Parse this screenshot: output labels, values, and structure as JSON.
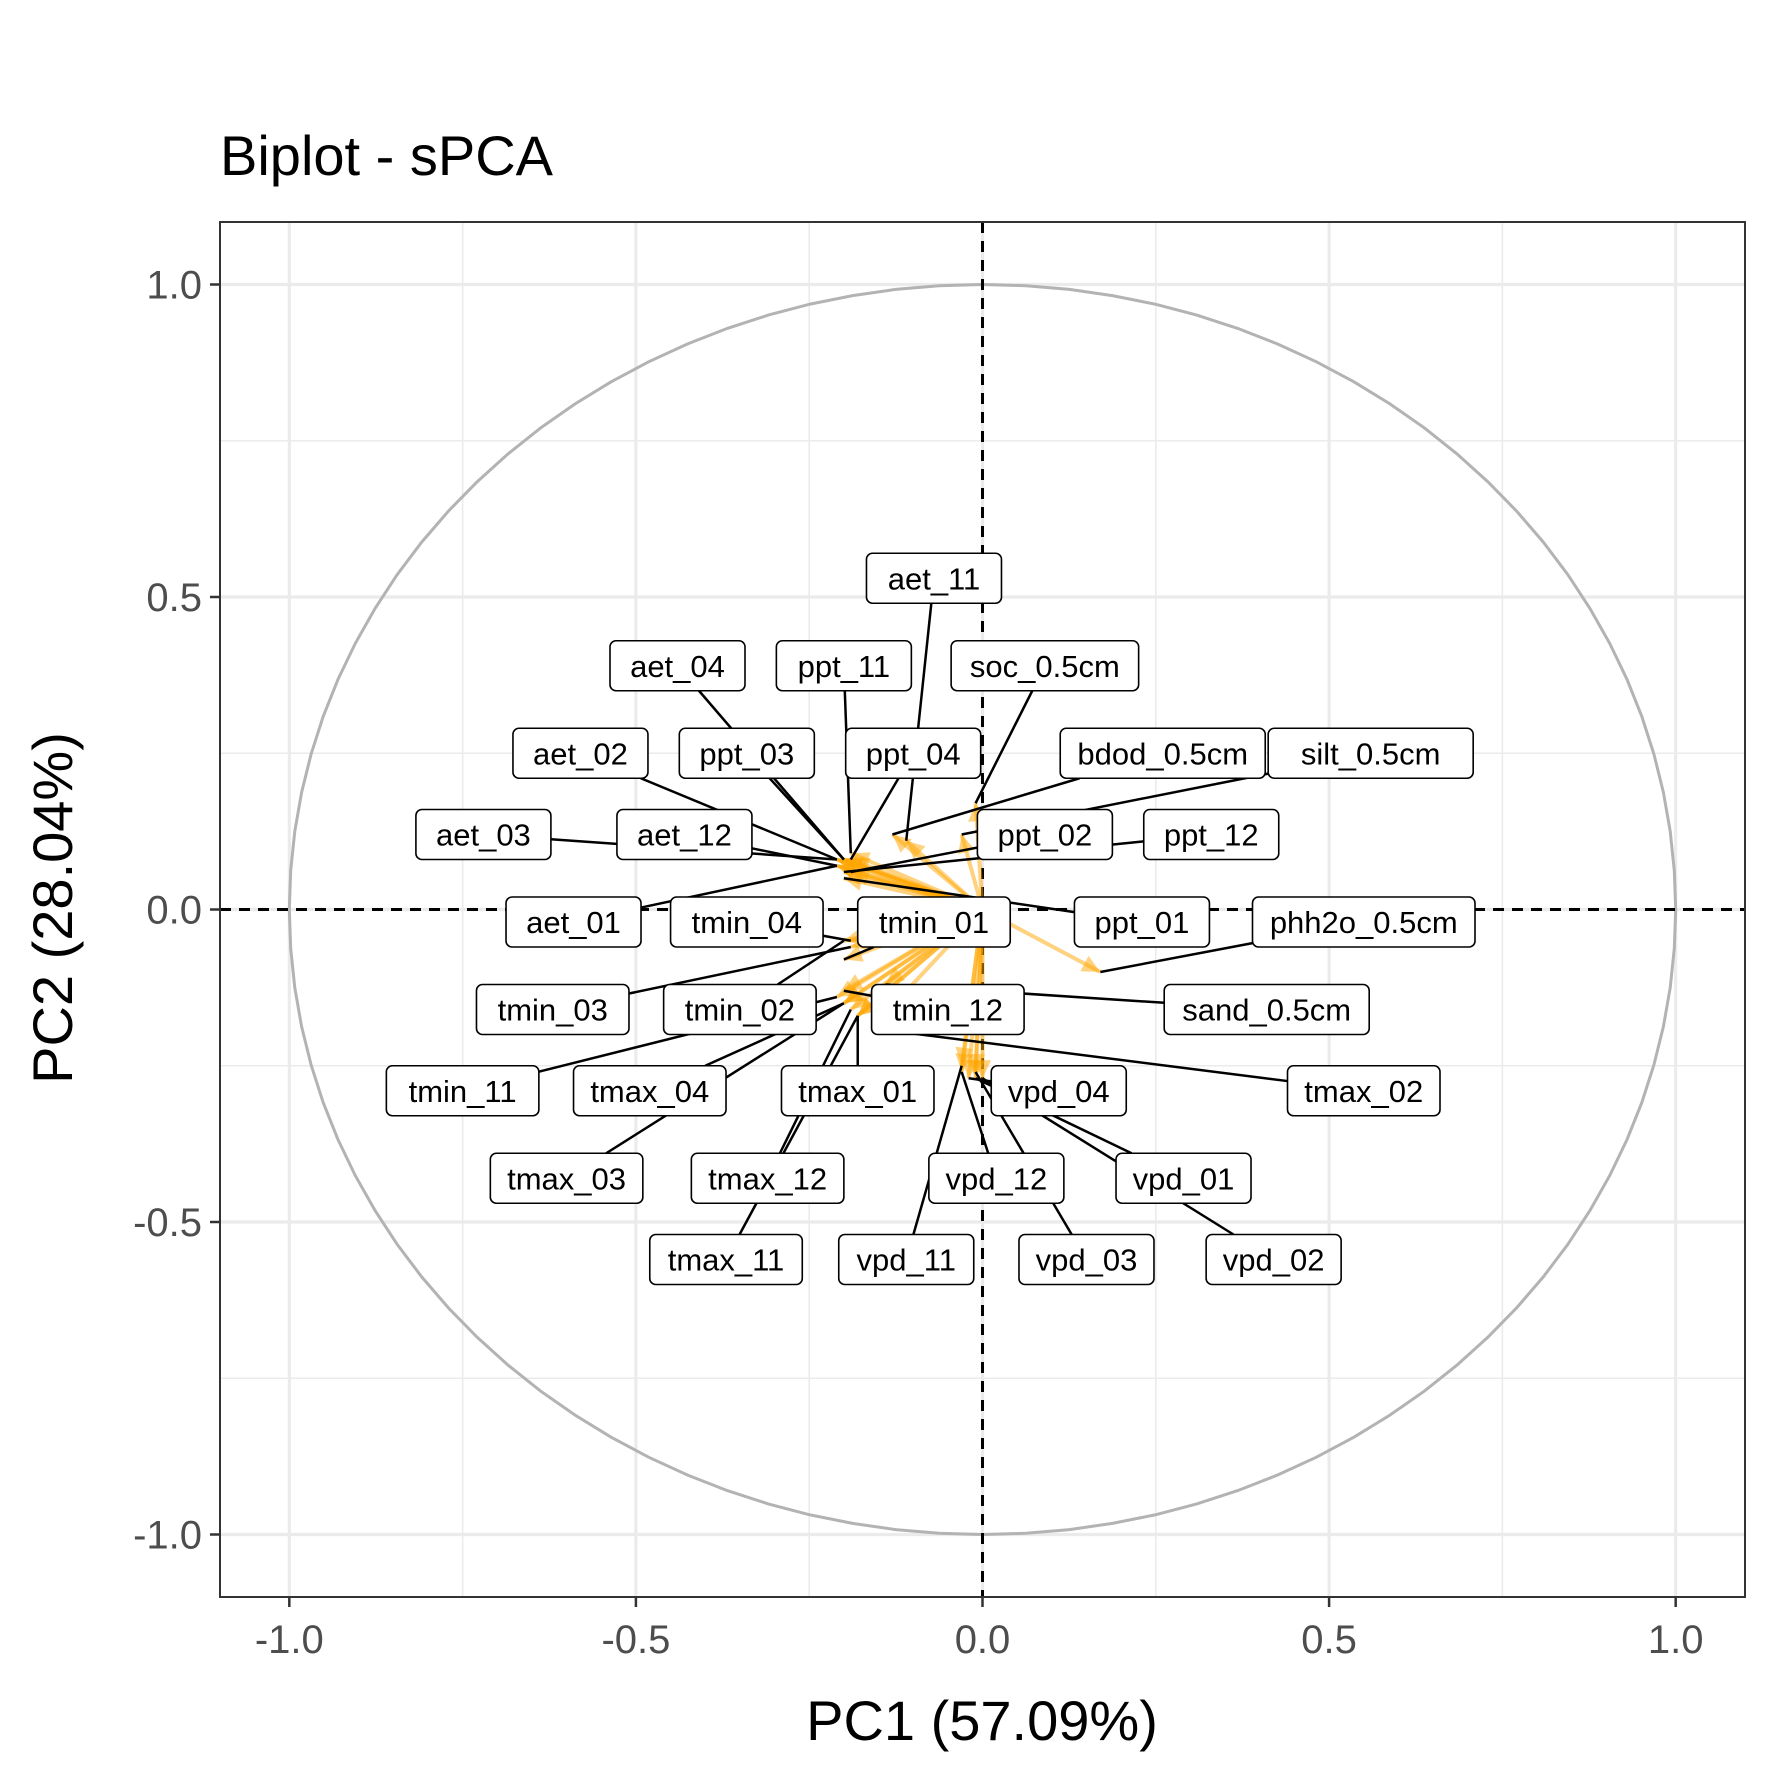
{
  "chart_data": {
    "type": "scatter",
    "title": "Biplot - sPCA",
    "xlabel": "PC1 (57.09%)",
    "ylabel": "PC2 (28.04%)",
    "xlim": [
      -1.1,
      1.1
    ],
    "ylim": [
      -1.1,
      1.1
    ],
    "xticks": [
      -1.0,
      -0.5,
      0.0,
      0.5,
      1.0
    ],
    "yticks": [
      -1.0,
      -0.5,
      0.0,
      0.5,
      1.0
    ],
    "xtick_labels": [
      "-1.0",
      "-0.5",
      "0.0",
      "0.5",
      "1.0"
    ],
    "ytick_labels": [
      "-1.0",
      "-0.5",
      "0.0",
      "0.5",
      "1.0"
    ],
    "grid": true,
    "unit_circle": true,
    "colors": {
      "arrow": "#FFA500",
      "circle": "#b3b3b3",
      "grid": "#ebebeb"
    },
    "variables": [
      {
        "name": "aet_11",
        "x": -0.11,
        "y": 0.11,
        "label_x": -0.07,
        "label_y": 0.53
      },
      {
        "name": "aet_04",
        "x": -0.2,
        "y": 0.08,
        "label_x": -0.44,
        "label_y": 0.39
      },
      {
        "name": "ppt_11",
        "x": -0.19,
        "y": 0.09,
        "label_x": -0.2,
        "label_y": 0.39
      },
      {
        "name": "soc_0.5cm",
        "x": -0.01,
        "y": 0.17,
        "label_x": 0.09,
        "label_y": 0.39
      },
      {
        "name": "aet_02",
        "x": -0.21,
        "y": 0.08,
        "label_x": -0.58,
        "label_y": 0.25
      },
      {
        "name": "ppt_03",
        "x": -0.2,
        "y": 0.08,
        "label_x": -0.34,
        "label_y": 0.25
      },
      {
        "name": "ppt_04",
        "x": -0.19,
        "y": 0.08,
        "label_x": -0.1,
        "label_y": 0.25
      },
      {
        "name": "bdod_0.5cm",
        "x": -0.13,
        "y": 0.12,
        "label_x": 0.26,
        "label_y": 0.25
      },
      {
        "name": "silt_0.5cm",
        "x": -0.03,
        "y": 0.12,
        "label_x": 0.56,
        "label_y": 0.25
      },
      {
        "name": "aet_03",
        "x": -0.21,
        "y": 0.08,
        "label_x": -0.72,
        "label_y": 0.12
      },
      {
        "name": "aet_12",
        "x": -0.21,
        "y": 0.07,
        "label_x": -0.43,
        "label_y": 0.12
      },
      {
        "name": "ppt_02",
        "x": -0.19,
        "y": 0.06,
        "label_x": 0.09,
        "label_y": 0.12
      },
      {
        "name": "ppt_12",
        "x": -0.2,
        "y": 0.06,
        "label_x": 0.33,
        "label_y": 0.12
      },
      {
        "name": "aet_01",
        "x": -0.21,
        "y": 0.07,
        "label_x": -0.59,
        "label_y": -0.02
      },
      {
        "name": "tmin_04",
        "x": -0.19,
        "y": -0.05,
        "label_x": -0.34,
        "label_y": -0.02
      },
      {
        "name": "tmin_01",
        "x": -0.2,
        "y": -0.08,
        "label_x": -0.07,
        "label_y": -0.02
      },
      {
        "name": "ppt_01",
        "x": -0.2,
        "y": 0.05,
        "label_x": 0.23,
        "label_y": -0.02
      },
      {
        "name": "phh2o_0.5cm",
        "x": 0.17,
        "y": -0.1,
        "label_x": 0.55,
        "label_y": -0.02
      },
      {
        "name": "sand_0.5cm",
        "x": -0.14,
        "y": -0.12,
        "label_x": 0.41,
        "label_y": -0.16
      },
      {
        "name": "tmin_03",
        "x": -0.19,
        "y": -0.06,
        "label_x": -0.62,
        "label_y": -0.16
      },
      {
        "name": "tmin_02",
        "x": -0.2,
        "y": -0.05,
        "label_x": -0.35,
        "label_y": -0.16
      },
      {
        "name": "tmin_12",
        "x": -0.2,
        "y": -0.13,
        "label_x": -0.05,
        "label_y": -0.16
      },
      {
        "name": "tmin_11",
        "x": -0.21,
        "y": -0.14,
        "label_x": -0.75,
        "label_y": -0.29
      },
      {
        "name": "tmax_04",
        "x": -0.2,
        "y": -0.15,
        "label_x": -0.48,
        "label_y": -0.29
      },
      {
        "name": "tmax_01",
        "x": -0.18,
        "y": -0.17,
        "label_x": -0.18,
        "label_y": -0.29
      },
      {
        "name": "vpd_04",
        "x": -0.02,
        "y": -0.27,
        "label_x": 0.11,
        "label_y": -0.29
      },
      {
        "name": "tmax_02",
        "x": -0.16,
        "y": -0.19,
        "label_x": 0.55,
        "label_y": -0.29
      },
      {
        "name": "tmax_03",
        "x": -0.2,
        "y": -0.15,
        "label_x": -0.6,
        "label_y": -0.43
      },
      {
        "name": "tmax_12",
        "x": -0.19,
        "y": -0.16,
        "label_x": -0.31,
        "label_y": -0.43
      },
      {
        "name": "vpd_12",
        "x": -0.03,
        "y": -0.26,
        "label_x": 0.02,
        "label_y": -0.43
      },
      {
        "name": "vpd_01",
        "x": -0.01,
        "y": -0.27,
        "label_x": 0.29,
        "label_y": -0.43
      },
      {
        "name": "tmax_11",
        "x": -0.18,
        "y": -0.17,
        "label_x": -0.37,
        "label_y": -0.56
      },
      {
        "name": "vpd_11",
        "x": -0.03,
        "y": -0.25,
        "label_x": -0.11,
        "label_y": -0.56
      },
      {
        "name": "vpd_03",
        "x": -0.01,
        "y": -0.26,
        "label_x": 0.15,
        "label_y": -0.56
      },
      {
        "name": "vpd_02",
        "x": 0.0,
        "y": -0.27,
        "label_x": 0.42,
        "label_y": -0.56
      }
    ]
  }
}
